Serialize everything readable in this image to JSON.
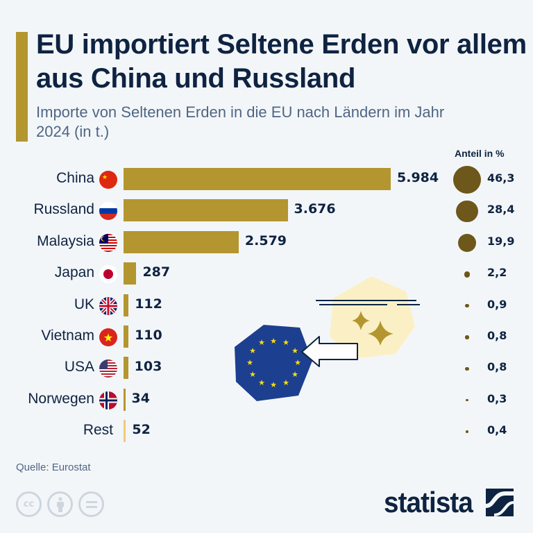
{
  "header": {
    "title": "EU importiert Seltene Erden vor allem aus China und Russland",
    "subtitle": "Importe von Seltenen Erden in die EU nach Ländern im Jahr 2024 (in t.)",
    "share_header": "Anteil in %"
  },
  "colors": {
    "bar": "#b3962f",
    "bar_rest": "#efc97c",
    "bubble": "#6d571a",
    "text": "#0e2341",
    "background": "#f3f6f9"
  },
  "rows": [
    {
      "label": "China",
      "value": "5.984",
      "share": "46,3",
      "flag": "china-flag-icon"
    },
    {
      "label": "Russland",
      "value": "3.676",
      "share": "28,4",
      "flag": "russia-flag-icon"
    },
    {
      "label": "Malaysia",
      "value": "2.579",
      "share": "19,9",
      "flag": "malaysia-flag-icon"
    },
    {
      "label": "Japan",
      "value": "287",
      "share": "2,2",
      "flag": "japan-flag-icon"
    },
    {
      "label": "UK",
      "value": "112",
      "share": "0,9",
      "flag": "uk-flag-icon"
    },
    {
      "label": "Vietnam",
      "value": "110",
      "share": "0,8",
      "flag": "vietnam-flag-icon"
    },
    {
      "label": "USA",
      "value": "103",
      "share": "0,8",
      "flag": "usa-flag-icon"
    },
    {
      "label": "Norwegen",
      "value": "34",
      "share": "0,3",
      "flag": "norway-flag-icon"
    },
    {
      "label": "Rest",
      "value": "52",
      "share": "0,4",
      "flag": ""
    }
  ],
  "footer": {
    "source": "Quelle: Eurostat",
    "logo": "statista",
    "license_icons": [
      "cc-icon",
      "attribution-icon",
      "no-derivatives-icon"
    ]
  },
  "chart_data": {
    "type": "bar",
    "orientation": "horizontal",
    "title": "EU importiert Seltene Erden vor allem aus China und Russland",
    "subtitle": "Importe von Seltenen Erden in die EU nach Ländern im Jahr 2024 (in t.)",
    "categories": [
      "China",
      "Russland",
      "Malaysia",
      "Japan",
      "UK",
      "Vietnam",
      "USA",
      "Norwegen",
      "Rest"
    ],
    "series": [
      {
        "name": "Importe (t)",
        "values": [
          5984,
          3676,
          2579,
          287,
          112,
          110,
          103,
          34,
          52
        ]
      },
      {
        "name": "Anteil in %",
        "values": [
          46.3,
          28.4,
          19.9,
          2.2,
          0.9,
          0.8,
          0.8,
          0.3,
          0.4
        ]
      }
    ],
    "xlabel": "",
    "ylabel": "",
    "grid": false,
    "source": "Eurostat"
  }
}
